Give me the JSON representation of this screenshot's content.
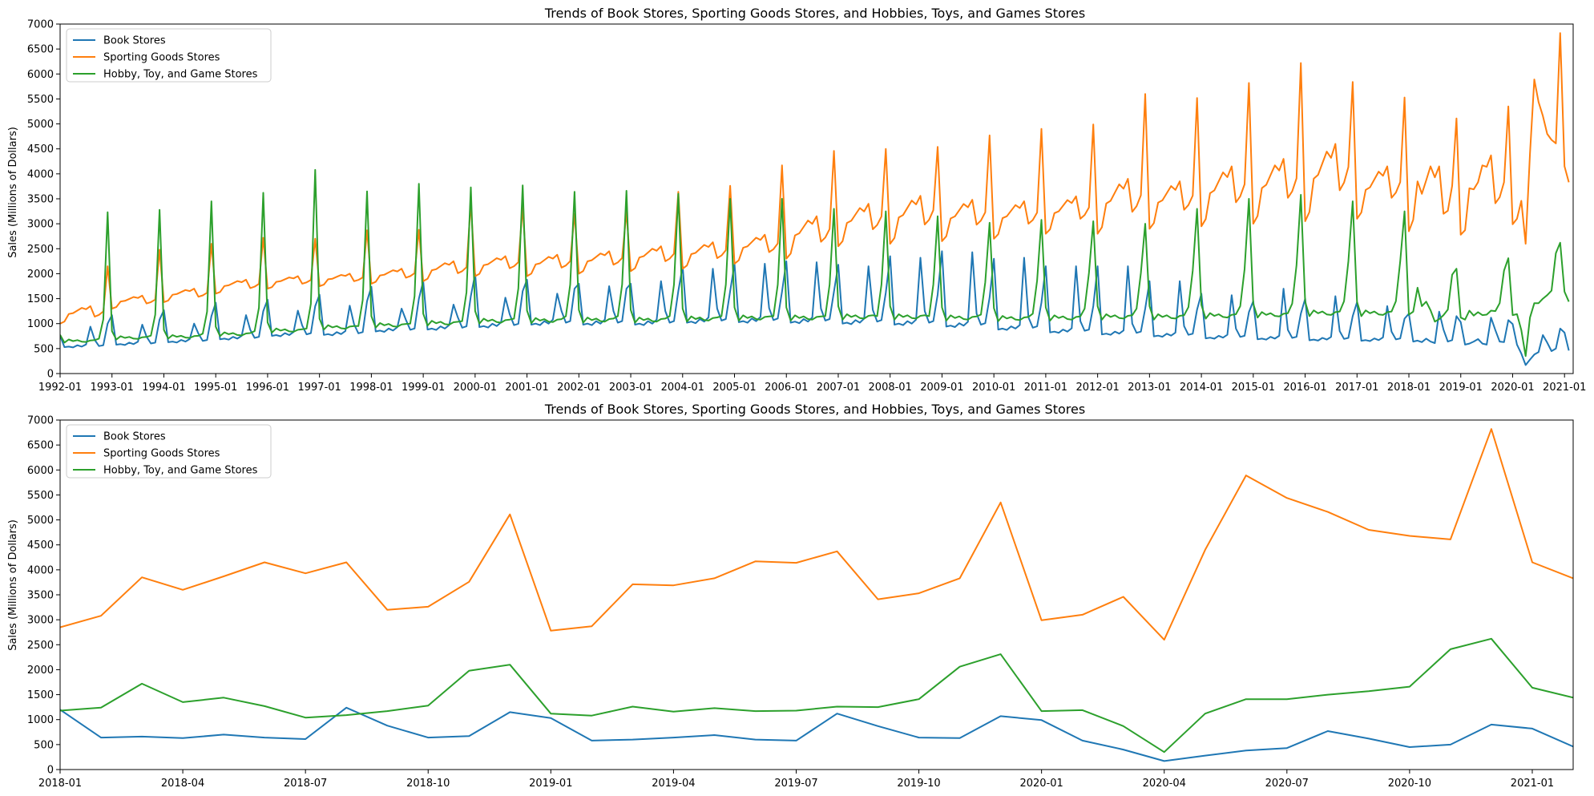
{
  "chart_data": [
    {
      "type": "line",
      "title": "Trends of Book Stores, Sporting Goods Stores, and Hobbies, Toys, and Games Stores",
      "xlabel": "",
      "ylabel": "Sales (Millions of Dollars)",
      "x_range": [
        "1992-01",
        "2021-03"
      ],
      "ylim": [
        0,
        7000
      ],
      "yticks": [
        0,
        500,
        1000,
        1500,
        2000,
        2500,
        3000,
        3500,
        4000,
        4500,
        5000,
        5500,
        6000,
        6500,
        7000
      ],
      "xticks": [
        "1992-01",
        "1993-01",
        "1994-01",
        "1995-01",
        "1996-01",
        "1997-01",
        "1998-01",
        "1999-01",
        "2000-01",
        "2001-01",
        "2002-01",
        "2003-01",
        "2004-01",
        "2005-01",
        "2006-01",
        "2007-01",
        "2008-01",
        "2009-01",
        "2010-01",
        "2011-01",
        "2012-01",
        "2013-01",
        "2014-01",
        "2015-01",
        "2016-01",
        "2017-01",
        "2018-01",
        "2019-01",
        "2020-01",
        "2021-01"
      ],
      "grid": false,
      "legend_position": "top-left",
      "series": [
        {
          "name": "Book Stores",
          "color": "#1f77b4",
          "key": "book"
        },
        {
          "name": "Sporting Goods Stores",
          "color": "#ff7f0e",
          "key": "sport"
        },
        {
          "name": "Hobby, Toy, and Game Stores",
          "color": "#2ca02c",
          "key": "hobby"
        }
      ],
      "annual_profiles": {
        "book": {
          "years": [
            1992,
            1993,
            1994,
            1995,
            1996,
            1997,
            1998,
            1999,
            2000,
            2001,
            2002,
            2003,
            2004,
            2005,
            2006,
            2007,
            2008,
            2009,
            2010,
            2011,
            2012,
            2013,
            2014,
            2015,
            2016,
            2017
          ],
          "january": [
            760,
            1170,
            1270,
            1420,
            1480,
            1580,
            1740,
            1850,
            2000,
            1880,
            1800,
            1800,
            2150,
            2200,
            2250,
            2180,
            2350,
            2450,
            2300,
            2150,
            2150,
            1850,
            1600,
            1450,
            1500,
            1430
          ],
          "august": [
            940,
            980,
            1000,
            1170,
            1260,
            1360,
            1300,
            1380,
            1520,
            1600,
            1750,
            1850,
            2100,
            2200,
            2230,
            2150,
            2320,
            2430,
            2320,
            2150,
            2150,
            1850,
            1570,
            1700,
            1550,
            1350
          ],
          "baseline": [
            540,
            590,
            640,
            700,
            770,
            790,
            860,
            900,
            950,
            1000,
            1000,
            1000,
            1040,
            1050,
            1040,
            1020,
            1000,
            960,
            900,
            840,
            800,
            760,
            720,
            700,
            680,
            670
          ],
          "december": [
            1000,
            1080,
            1150,
            1250,
            1350,
            1450,
            1500,
            1550,
            1650,
            1700,
            1700,
            1650,
            1650,
            1640,
            1640,
            1620,
            1580,
            1520,
            1420,
            1350,
            1300,
            1280,
            1230,
            1200,
            1150,
            1100
          ]
        },
        "sport": {
          "years": [
            1992,
            1993,
            1994,
            1995,
            1996,
            1997,
            1998,
            1999,
            2000,
            2001,
            2002,
            2003,
            2004,
            2005,
            2006,
            2007,
            2008,
            2009,
            2010,
            2011,
            2012,
            2013,
            2014,
            2015,
            2016,
            2017
          ],
          "december": [
            2150,
            2480,
            2600,
            2720,
            2700,
            2870,
            2880,
            3420,
            3330,
            3200,
            3240,
            3640,
            3760,
            4170,
            4460,
            4500,
            4540,
            4770,
            4900,
            4990,
            5600,
            5520,
            5820,
            6220,
            5840,
            5530
          ],
          "low": [
            1000,
            1300,
            1430,
            1600,
            1700,
            1750,
            1800,
            1850,
            1950,
            1950,
            2000,
            2050,
            2100,
            2200,
            2300,
            2550,
            2600,
            2650,
            2700,
            2800,
            2800,
            2900,
            2950,
            3000,
            3050,
            3100
          ],
          "high": [
            1350,
            1560,
            1700,
            1880,
            1950,
            2000,
            2100,
            2250,
            2350,
            2380,
            2450,
            2550,
            2630,
            2780,
            3150,
            3400,
            3560,
            3480,
            3450,
            3550,
            3900,
            3850,
            4150,
            4300,
            4600,
            4150
          ]
        },
        "hobby": {
          "years": [
            1992,
            1993,
            1994,
            1995,
            1996,
            1997,
            1998,
            1999,
            2000,
            2001,
            2002,
            2003,
            2004,
            2005,
            2006,
            2007,
            2008,
            2009,
            2010,
            2011,
            2012,
            2013,
            2014,
            2015,
            2016,
            2017
          ],
          "december": [
            3230,
            3280,
            3450,
            3620,
            4080,
            3650,
            3800,
            3730,
            3770,
            3640,
            3660,
            3600,
            3500,
            3500,
            3300,
            3250,
            3150,
            3020,
            3080,
            3050,
            3000,
            3300,
            3500,
            3580,
            3450,
            3250
          ],
          "low": [
            620,
            680,
            700,
            750,
            820,
            880,
            920,
            960,
            1000,
            1010,
            1020,
            1020,
            1040,
            1060,
            1060,
            1080,
            1080,
            1060,
            1050,
            1060,
            1080,
            1080,
            1100,
            1120,
            1150,
            1150
          ],
          "oct": [
            700,
            760,
            800,
            850,
            900,
            950,
            1000,
            1050,
            1100,
            1150,
            1150,
            1150,
            1150,
            1150,
            1150,
            1150,
            1150,
            1180,
            1200,
            1300,
            1300,
            1330,
            1350,
            1400,
            1450,
            1450
          ]
        }
      },
      "monthly_from_2018": {
        "x": [
          "2018-01",
          "2018-02",
          "2018-03",
          "2018-04",
          "2018-05",
          "2018-06",
          "2018-07",
          "2018-08",
          "2018-09",
          "2018-10",
          "2018-11",
          "2018-12",
          "2019-01",
          "2019-02",
          "2019-03",
          "2019-04",
          "2019-05",
          "2019-06",
          "2019-07",
          "2019-08",
          "2019-09",
          "2019-10",
          "2019-11",
          "2019-12",
          "2020-01",
          "2020-02",
          "2020-03",
          "2020-04",
          "2020-05",
          "2020-06",
          "2020-07",
          "2020-08",
          "2020-09",
          "2020-10",
          "2020-11",
          "2020-12",
          "2021-01",
          "2021-02",
          "2021-03"
        ],
        "book": [
          1200,
          640,
          660,
          630,
          700,
          640,
          610,
          1240,
          880,
          640,
          670,
          1150,
          1030,
          580,
          600,
          640,
          690,
          600,
          580,
          1120,
          870,
          640,
          630,
          1070,
          990,
          580,
          400,
          170,
          280,
          380,
          430,
          770,
          620,
          450,
          500,
          900,
          820,
          460,
          null
        ],
        "sport": [
          2850,
          3080,
          3850,
          3600,
          3870,
          4150,
          3930,
          4150,
          3200,
          3260,
          3760,
          5110,
          2780,
          2870,
          3710,
          3690,
          3830,
          4170,
          4140,
          4370,
          3410,
          3530,
          3830,
          5350,
          2990,
          3100,
          3460,
          2600,
          4400,
          5890,
          5440,
          5160,
          4800,
          4680,
          4610,
          6820,
          4150,
          3830,
          null
        ],
        "hobby": [
          1180,
          1240,
          1720,
          1350,
          1440,
          1270,
          1040,
          1090,
          1170,
          1280,
          1980,
          2100,
          1120,
          1080,
          1260,
          1160,
          1230,
          1170,
          1180,
          1260,
          1250,
          1410,
          2060,
          2310,
          1170,
          1190,
          870,
          350,
          1120,
          1410,
          1410,
          1500,
          1570,
          1660,
          2410,
          2620,
          1640,
          1440,
          null
        ]
      }
    },
    {
      "type": "line",
      "title": "Trends of Book Stores, Sporting Goods Stores, and Hobbies, Toys, and Games Stores",
      "xlabel": "",
      "ylabel": "Sales (Millions of Dollars)",
      "x_range": [
        "2018-01",
        "2021-02"
      ],
      "ylim": [
        0,
        7000
      ],
      "yticks": [
        0,
        500,
        1000,
        1500,
        2000,
        2500,
        3000,
        3500,
        4000,
        4500,
        5000,
        5500,
        6000,
        6500,
        7000
      ],
      "xticks": [
        "2018-01",
        "2018-04",
        "2018-07",
        "2018-10",
        "2019-01",
        "2019-04",
        "2019-07",
        "2019-10",
        "2020-01",
        "2020-04",
        "2020-07",
        "2020-10",
        "2021-01"
      ],
      "grid": false,
      "legend_position": "top-left",
      "series": [
        {
          "name": "Book Stores",
          "color": "#1f77b4",
          "key": "book"
        },
        {
          "name": "Sporting Goods Stores",
          "color": "#ff7f0e",
          "key": "sport"
        },
        {
          "name": "Hobby, Toy, and Game Stores",
          "color": "#2ca02c",
          "key": "hobby"
        }
      ]
    }
  ]
}
